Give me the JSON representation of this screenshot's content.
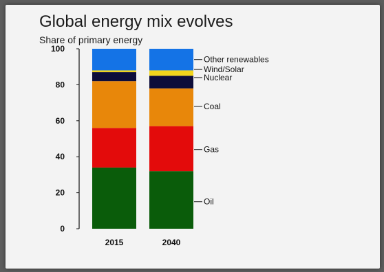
{
  "chart_data": {
    "type": "bar",
    "stacked": true,
    "title": "Global energy mix evolves",
    "subtitle": "Share of primary energy",
    "xlabel": "",
    "ylabel": "",
    "categories": [
      "2015",
      "2040"
    ],
    "ylim": [
      0,
      100
    ],
    "yticks": [
      0,
      20,
      40,
      60,
      80,
      100
    ],
    "grid": false,
    "legend": "right",
    "series": [
      {
        "name": "Oil",
        "color": "#0a5c0a",
        "values": [
          34,
          32
        ]
      },
      {
        "name": "Gas",
        "color": "#e30b0b",
        "values": [
          22,
          25
        ]
      },
      {
        "name": "Coal",
        "color": "#e8870a",
        "values": [
          26,
          21
        ]
      },
      {
        "name": "Nuclear",
        "color": "#0d0d3a",
        "values": [
          5,
          7
        ]
      },
      {
        "name": "Wind/Solar",
        "color": "#f2d51c",
        "values": [
          1,
          3
        ]
      },
      {
        "name": "Other renewables",
        "color": "#1473e6",
        "values": [
          12,
          12
        ]
      }
    ],
    "labels": [
      {
        "text": "Other renewables",
        "y": 94
      },
      {
        "text": "Wind/Solar",
        "y": 88.5
      },
      {
        "text": "Nuclear",
        "y": 84
      },
      {
        "text": "Coal",
        "y": 68
      },
      {
        "text": "Gas",
        "y": 44
      },
      {
        "text": "Oil",
        "y": 15
      }
    ]
  }
}
